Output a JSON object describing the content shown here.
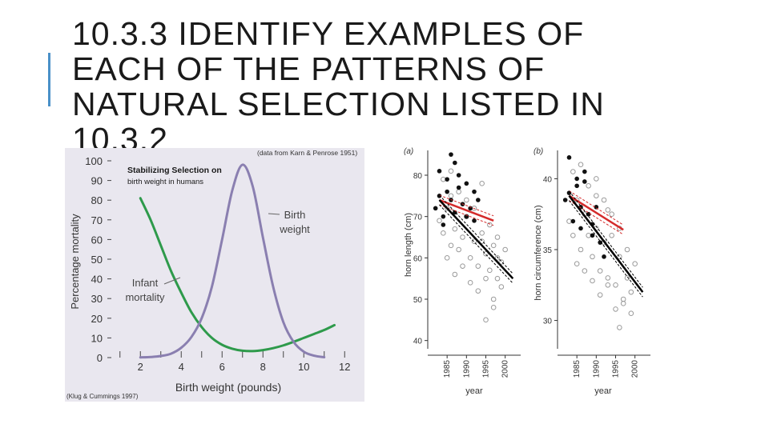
{
  "slide": {
    "title_lines": [
      "10.3.3  IDENTIFY EXAMPLES OF",
      "EACH OF THE PATTERNS OF",
      "NATURAL SELECTION LISTED IN",
      "10.3.2"
    ],
    "accent_color": "#4a90c8"
  },
  "chart_data": [
    {
      "type": "line",
      "title": "Stabilizing Selection on",
      "subtitle": "birth weight in humans",
      "source_top": "(data from Karn & Penrose 1951)",
      "source_bottom": "(Klug & Cummings 1997)",
      "xlabel": "Birth weight (pounds)",
      "ylabel": "Percentage mortality",
      "xlim": [
        0.5,
        12.5
      ],
      "ylim": [
        0,
        100
      ],
      "xticks": [
        "2",
        "4",
        "6",
        "8",
        "10",
        "12"
      ],
      "yticks": [
        "0",
        "10",
        "20",
        "30",
        "40",
        "50",
        "60",
        "70",
        "80",
        "90",
        "100"
      ],
      "background": "#e9e7ef",
      "series": [
        {
          "name": "Infant mortality",
          "color": "#2e9a4b",
          "x": [
            2,
            2.5,
            3,
            3.5,
            4,
            4.5,
            5,
            5.5,
            6,
            6.5,
            7,
            7.5,
            8,
            8.5,
            9,
            9.5,
            10,
            10.5,
            11,
            11.5
          ],
          "y": [
            81,
            70,
            57,
            44,
            33,
            23,
            15.5,
            10,
            6.5,
            4.5,
            3.5,
            3.3,
            3.8,
            4.8,
            6.2,
            8,
            10,
            12,
            14,
            16.5
          ]
        },
        {
          "name": "Birth weight",
          "color": "#8a7fb0",
          "x": [
            2,
            2.5,
            3,
            3.5,
            4,
            4.5,
            5,
            5.5,
            6,
            6.5,
            7,
            7.5,
            8,
            8.5,
            9,
            9.5,
            10,
            10.5,
            11
          ],
          "y": [
            0.1,
            0.3,
            0.8,
            2,
            5,
            10.5,
            20,
            36,
            60,
            85,
            98,
            87,
            61,
            36,
            18,
            8,
            3,
            1,
            0.2
          ]
        }
      ],
      "annotations": [
        {
          "text": "Infant",
          "series": "Infant mortality"
        },
        {
          "text": "mortality",
          "series": "Infant mortality"
        },
        {
          "text": "Birth",
          "series": "Birth weight"
        },
        {
          "text": "weight",
          "series": "Birth weight"
        }
      ]
    },
    {
      "type": "scatter",
      "panel": "(a)",
      "xlabel": "year",
      "ylabel": "horn length (cm)",
      "xlim": [
        1980,
        2004
      ],
      "ylim": [
        38,
        86
      ],
      "xticks": [
        "1985",
        "1990",
        "1995",
        "2000"
      ],
      "yticks": [
        "40",
        "50",
        "60",
        "70",
        "80"
      ],
      "lines": [
        {
          "color": "#d42a2a",
          "x": [
            1983,
            1997
          ],
          "y": [
            74,
            69
          ]
        },
        {
          "color": "#000000",
          "x": [
            1983,
            2002
          ],
          "y": [
            74,
            55
          ]
        }
      ],
      "points_filled": {
        "x": [
          1982,
          1983,
          1984,
          1985,
          1986,
          1987,
          1988,
          1989,
          1990,
          1991,
          1992,
          1993,
          1983,
          1985,
          1987,
          1990,
          1984,
          1986,
          1988,
          1992
        ],
        "y": [
          72,
          75,
          70,
          76,
          74,
          71,
          77,
          73,
          70,
          72,
          69,
          74,
          81,
          79,
          83,
          78,
          68,
          85,
          80,
          76
        ]
      },
      "points_open": {
        "x": [
          1983,
          1984,
          1985,
          1986,
          1987,
          1988,
          1989,
          1990,
          1991,
          1992,
          1993,
          1994,
          1995,
          1996,
          1997,
          1998,
          1999,
          2000,
          1984,
          1986,
          1988,
          1990,
          1992,
          1994,
          1996,
          1998,
          1985,
          1987,
          1989,
          1991,
          1993,
          1995,
          1997,
          1999,
          1986,
          1990,
          1994,
          1998,
          1995,
          1997
        ],
        "y": [
          69,
          66,
          72,
          63,
          67,
          62,
          65,
          70,
          60,
          64,
          58,
          66,
          61,
          57,
          63,
          55,
          59,
          62,
          79,
          81,
          76,
          74,
          72,
          78,
          68,
          65,
          60,
          56,
          58,
          54,
          52,
          55,
          50,
          53,
          75,
          70,
          64,
          60,
          45,
          48
        ]
      }
    },
    {
      "type": "scatter",
      "panel": "(b)",
      "xlabel": "year",
      "ylabel": "horn circumference (cm)",
      "xlim": [
        1980,
        2004
      ],
      "ylim": [
        28,
        42
      ],
      "xticks": [
        "1985",
        "1990",
        "1995",
        "2000"
      ],
      "yticks": [
        "30",
        "35",
        "40"
      ],
      "lines": [
        {
          "color": "#d42a2a",
          "x": [
            1983,
            1997
          ],
          "y": [
            38.8,
            36.4
          ]
        },
        {
          "color": "#000000",
          "x": [
            1983,
            2002
          ],
          "y": [
            38.8,
            32
          ]
        }
      ],
      "points_filled": {
        "x": [
          1982,
          1983,
          1984,
          1985,
          1986,
          1987,
          1988,
          1989,
          1990,
          1991,
          1983,
          1985,
          1987,
          1986,
          1989,
          1992
        ],
        "y": [
          38.5,
          39,
          37,
          39.5,
          38,
          40.5,
          37.5,
          36,
          38,
          35.5,
          41.5,
          40,
          39.8,
          36.5,
          36.8,
          34.5
        ],
        "size": "small"
      },
      "points_open": {
        "x": [
          1983,
          1984,
          1985,
          1986,
          1987,
          1988,
          1989,
          1990,
          1991,
          1992,
          1993,
          1994,
          1995,
          1996,
          1997,
          1998,
          1999,
          2000,
          1984,
          1986,
          1988,
          1990,
          1992,
          1994,
          1996,
          1998,
          1985,
          1987,
          1989,
          1991,
          1993,
          1995,
          1997,
          1999,
          1990,
          1993,
          1996
        ],
        "y": [
          37,
          36,
          38.5,
          35,
          37.5,
          36,
          34.5,
          36.5,
          33.5,
          35.5,
          33,
          36,
          32.5,
          34.5,
          31.5,
          33,
          32,
          34,
          40.5,
          41,
          39.5,
          40,
          38.5,
          37.5,
          36.5,
          35,
          34,
          33.5,
          32.8,
          31.8,
          32.5,
          30.8,
          31.2,
          30.5,
          38.8,
          37.8,
          29.5
        ]
      }
    }
  ]
}
